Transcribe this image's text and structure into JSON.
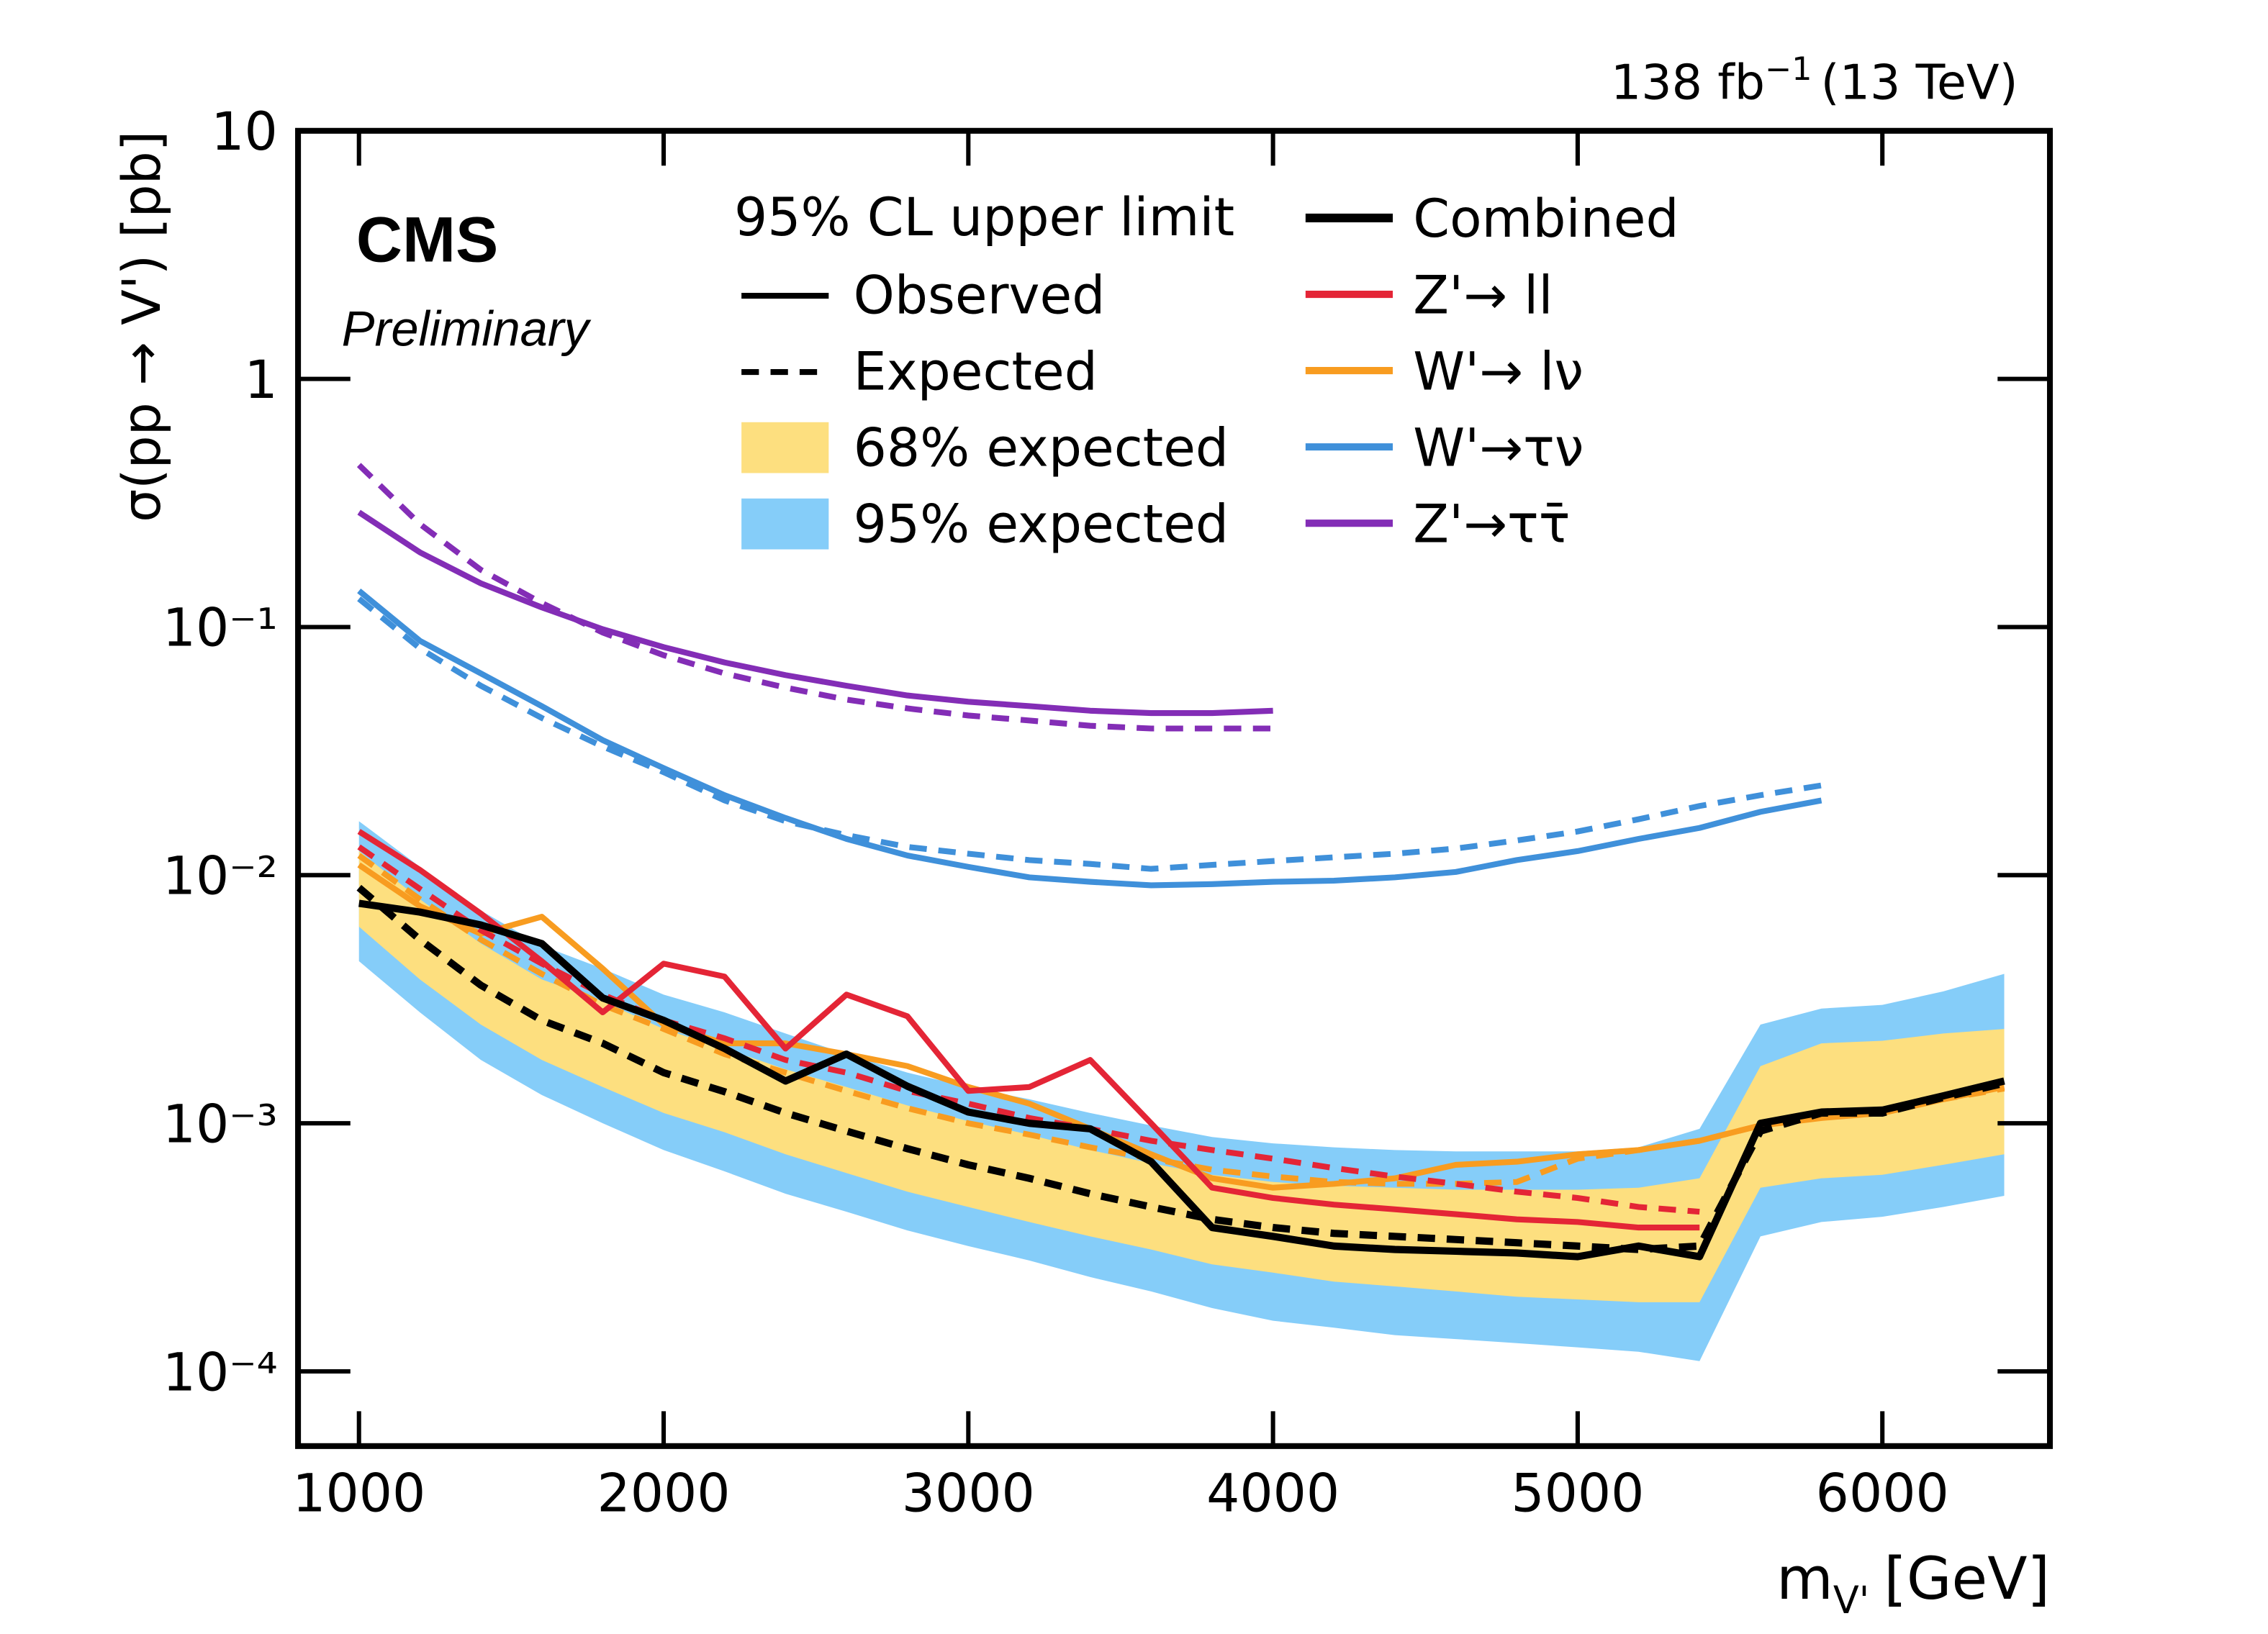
{
  "chart_data": {
    "type": "line",
    "lumi": {
      "text": "138 fb",
      "sup": "−1",
      "energy": "(13 TeV)"
    },
    "experiment": "CMS",
    "status": "Preliminary",
    "y_label": "σ(pp → V') [pb]",
    "x_label": {
      "main": "m",
      "sub": "V'",
      "unit": "[GeV]"
    },
    "log_y": true,
    "xlim": [
      800,
      6550
    ],
    "ylim": [
      5e-05,
      10
    ],
    "xticks": [
      1000,
      2000,
      3000,
      4000,
      5000,
      6000
    ],
    "yticks": [
      {
        "value": 0.0001,
        "label": "10⁻⁴"
      },
      {
        "value": 0.001,
        "label": "10⁻³"
      },
      {
        "value": 0.01,
        "label": "10⁻²"
      },
      {
        "value": 0.1,
        "label": "10⁻¹"
      },
      1,
      10
    ],
    "legend_title": "95% CL upper limit",
    "line_styles": [
      {
        "name": "Observed",
        "dashed": false
      },
      {
        "name": "Expected",
        "dashed": true
      }
    ],
    "x": [
      1000,
      1200,
      1400,
      1600,
      1800,
      2000,
      2200,
      2400,
      2600,
      2800,
      3000,
      3200,
      3400,
      3600,
      3800,
      4000,
      4200,
      4400,
      4600,
      4800,
      5000,
      5200,
      5400,
      5600,
      5800,
      6000,
      6200,
      6400
    ],
    "bands": [
      {
        "name": "68% expected",
        "color": "#fddf7f",
        "high": [
          0.0125,
          0.008,
          0.0053,
          0.0038,
          0.0031,
          0.0024,
          0.002,
          0.00165,
          0.0014,
          0.00118,
          0.00102,
          0.0009,
          0.00078,
          0.00069,
          0.00062,
          0.00058,
          0.00056,
          0.00055,
          0.00054,
          0.00054,
          0.00054,
          0.00055,
          0.0006,
          0.0017,
          0.0021,
          0.00215,
          0.0023,
          0.0024
        ],
        "low": [
          0.0062,
          0.0038,
          0.0025,
          0.0018,
          0.0014,
          0.0011,
          0.00092,
          0.00075,
          0.00063,
          0.00053,
          0.00046,
          0.0004,
          0.00035,
          0.00031,
          0.00027,
          0.00025,
          0.00023,
          0.00022,
          0.00021,
          0.0002,
          0.000195,
          0.00019,
          0.00019,
          0.00055,
          0.0006,
          0.00062,
          0.00068,
          0.00075
        ]
      },
      {
        "name": "95% expected",
        "color": "#85cdf9",
        "high": [
          0.0165,
          0.0108,
          0.0072,
          0.0052,
          0.0042,
          0.0033,
          0.0028,
          0.0023,
          0.0019,
          0.0016,
          0.0014,
          0.00125,
          0.0011,
          0.00098,
          0.00088,
          0.00083,
          0.0008,
          0.00078,
          0.00077,
          0.00077,
          0.00077,
          0.0008,
          0.00095,
          0.0025,
          0.0029,
          0.003,
          0.0034,
          0.004
        ],
        "low": [
          0.0045,
          0.0028,
          0.0018,
          0.0013,
          0.001,
          0.00078,
          0.00064,
          0.00052,
          0.00044,
          0.00037,
          0.00032,
          0.00028,
          0.00024,
          0.00021,
          0.00018,
          0.00016,
          0.00015,
          0.00014,
          0.000135,
          0.00013,
          0.000125,
          0.00012,
          0.00011,
          0.00035,
          0.0004,
          0.00042,
          0.00046,
          0.00051
        ]
      }
    ],
    "series": [
      {
        "name": "Combined",
        "color": "#000000",
        "observed": [
          0.0077,
          0.0071,
          0.0063,
          0.0053,
          0.0032,
          0.0026,
          0.002,
          0.00148,
          0.0019,
          0.00141,
          0.00111,
          0.001,
          0.00095,
          0.0007,
          0.00038,
          0.00035,
          0.00032,
          0.00031,
          0.000305,
          0.0003,
          0.00029,
          0.00032,
          0.00029,
          0.001,
          0.00111,
          0.00113,
          0.00129,
          0.00148
        ],
        "expected": [
          0.0089,
          0.0055,
          0.0036,
          0.0026,
          0.0021,
          0.0016,
          0.00134,
          0.0011,
          0.00093,
          0.00079,
          0.00068,
          0.0006,
          0.00052,
          0.00046,
          0.00041,
          0.00038,
          0.00036,
          0.00035,
          0.00034,
          0.00033,
          0.00032,
          0.00031,
          0.00032,
          0.00093,
          0.0011,
          0.0011,
          0.00127,
          0.00145
        ]
      },
      {
        "name": "Z'→ ll",
        "color": "#e42536",
        "observed": [
          0.015,
          0.0105,
          0.007,
          0.0045,
          0.0028,
          0.0044,
          0.0039,
          0.002,
          0.0033,
          0.0027,
          0.00135,
          0.0014,
          0.0018,
          0.001,
          0.00055,
          0.0005,
          0.00047,
          0.00045,
          0.00043,
          0.00041,
          0.0004,
          0.00038,
          0.00038,
          null,
          null,
          null,
          null,
          null
        ],
        "expected": [
          0.013,
          0.0088,
          0.006,
          0.0044,
          0.0033,
          0.0026,
          0.0022,
          0.0018,
          0.0016,
          0.00135,
          0.0012,
          0.00105,
          0.00095,
          0.00085,
          0.00078,
          0.00072,
          0.00066,
          0.00061,
          0.00057,
          0.00053,
          0.0005,
          0.00046,
          0.00044,
          null,
          null,
          null,
          null,
          null
        ]
      },
      {
        "name": "W'→ lν",
        "color": "#f89c20",
        "observed": [
          0.011,
          0.0075,
          0.0058,
          0.0068,
          0.0042,
          0.0025,
          0.0021,
          0.0021,
          0.0019,
          0.0017,
          0.0014,
          0.0012,
          0.00095,
          0.00075,
          0.0006,
          0.00055,
          0.00057,
          0.0006,
          0.00068,
          0.0007,
          0.00075,
          0.00078,
          0.00085,
          0.00098,
          0.00105,
          0.0011,
          0.00125,
          0.0014
        ],
        "expected": [
          0.012,
          0.008,
          0.0055,
          0.004,
          0.003,
          0.0024,
          0.0019,
          0.0016,
          0.00135,
          0.00115,
          0.001,
          0.0009,
          0.0008,
          0.00072,
          0.00065,
          0.00061,
          0.00058,
          0.00057,
          0.00057,
          0.00058,
          0.00072,
          0.00078,
          0.00085,
          0.00098,
          0.00108,
          0.00112,
          0.00125,
          0.00138
        ]
      },
      {
        "name": "W'→τν",
        "color": "#3f90da",
        "observed": [
          0.14,
          0.088,
          0.065,
          0.048,
          0.035,
          0.027,
          0.021,
          0.017,
          0.014,
          0.012,
          0.0108,
          0.0098,
          0.0094,
          0.0091,
          0.0092,
          0.0094,
          0.0095,
          0.0098,
          0.0103,
          0.0115,
          0.0125,
          0.014,
          0.0155,
          0.018,
          0.02,
          null,
          null,
          null
        ],
        "expected": [
          0.13,
          0.082,
          0.058,
          0.043,
          0.033,
          0.026,
          0.02,
          0.0165,
          0.0145,
          0.013,
          0.0122,
          0.0115,
          0.0111,
          0.0106,
          0.011,
          0.0114,
          0.0118,
          0.0122,
          0.0128,
          0.0138,
          0.015,
          0.0168,
          0.019,
          0.021,
          0.023,
          null,
          null,
          null
        ]
      },
      {
        "name": "Z'→ττ̄",
        "color": "#832db6",
        "observed": [
          0.29,
          0.2,
          0.15,
          0.12,
          0.098,
          0.083,
          0.072,
          0.064,
          0.058,
          0.053,
          0.05,
          0.048,
          0.046,
          0.045,
          0.045,
          0.046,
          null,
          null,
          null,
          null,
          null,
          null,
          null,
          null,
          null,
          null,
          null,
          null
        ],
        "expected": [
          0.45,
          0.26,
          0.17,
          0.125,
          0.095,
          0.077,
          0.065,
          0.057,
          0.051,
          0.047,
          0.044,
          0.042,
          0.04,
          0.039,
          0.039,
          0.039,
          null,
          null,
          null,
          null,
          null,
          null,
          null,
          null,
          null,
          null,
          null,
          null
        ]
      }
    ]
  }
}
